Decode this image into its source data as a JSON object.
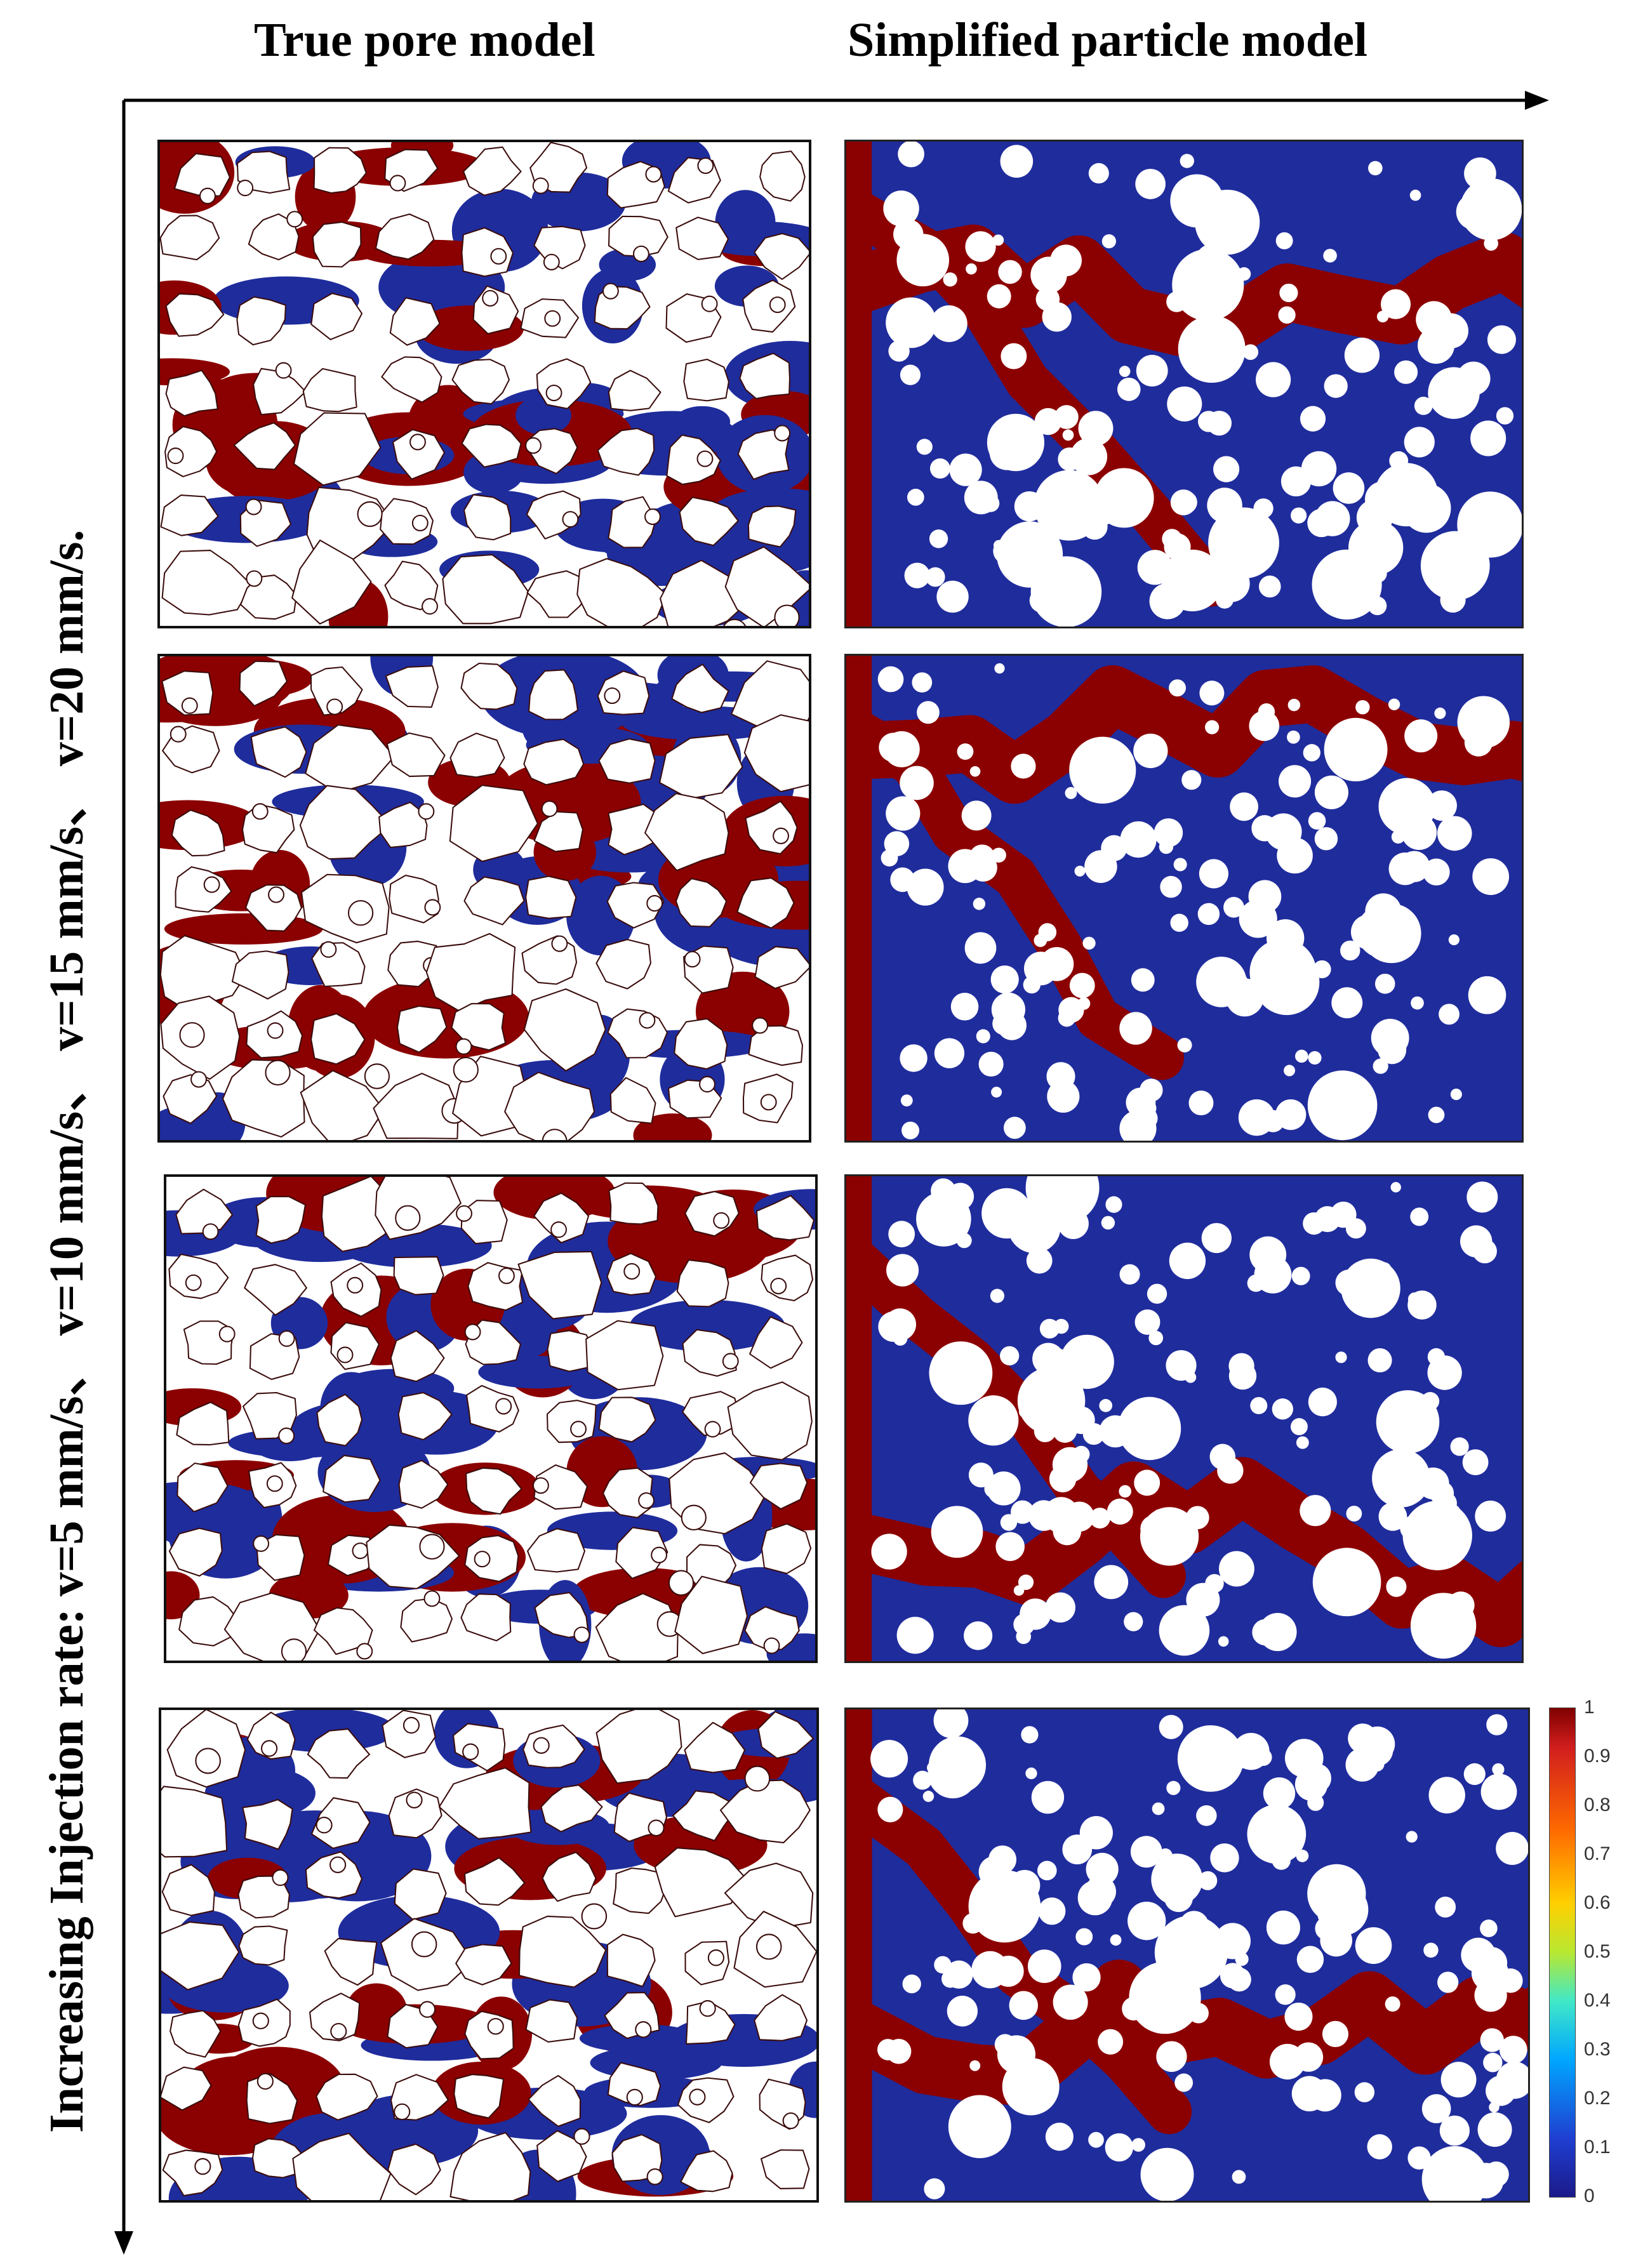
{
  "column_titles": {
    "left": "True pore model",
    "right": "Simplified particle model"
  },
  "side_label": "Increasing Injection rate: v=5 mm/s、 v=10 mm/s、 v=15 mm/s、 v=20 mm/s.",
  "rows": 4,
  "colorbar": {
    "ticks": [
      "1",
      "0.9",
      "0.8",
      "0.7",
      "0.6",
      "0.5",
      "0.4",
      "0.3",
      "0.2",
      "0.1",
      "0"
    ],
    "max_color": "#7f0000",
    "min_color": "#1b1a8a"
  },
  "colors": {
    "invading_phase": "#8b0000",
    "displaced_phase": "#1f2c9c",
    "grain": "#ffffff"
  }
}
